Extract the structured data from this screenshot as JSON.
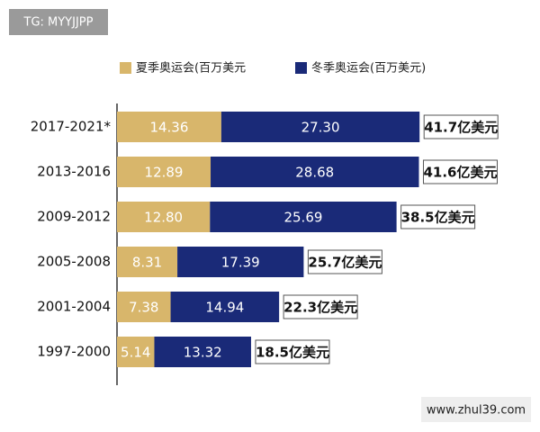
{
  "watermark_top": "TG: MYYJJPP",
  "watermark_bottom": "www.zhul39.com",
  "chart_data": {
    "type": "stacked-bar-horizontal",
    "categories": [
      "2017-2021*",
      "2013-2016",
      "2009-2012",
      "2005-2008",
      "2001-2004",
      "1997-2000"
    ],
    "series": [
      {
        "name": "夏季奥运会(百万美元",
        "color": "#d8b66b",
        "values": [
          14.36,
          12.89,
          12.8,
          8.31,
          7.38,
          5.14
        ],
        "value_labels": [
          "14.36",
          "12.89",
          "12.80",
          "8.31",
          "7.38",
          "5.14"
        ]
      },
      {
        "name": "冬季奥运会(百万美元)",
        "color": "#1a2a78",
        "values": [
          27.3,
          28.68,
          25.69,
          17.39,
          14.94,
          13.32
        ],
        "value_labels": [
          "27.30",
          "28.68",
          "25.69",
          "17.39",
          "14.94",
          "13.32"
        ]
      }
    ],
    "total_labels": [
      "41.7亿美元",
      "41.6亿美元",
      "38.5亿美元",
      "25.7亿美元",
      "22.3亿美元",
      "18.5亿美元"
    ]
  }
}
